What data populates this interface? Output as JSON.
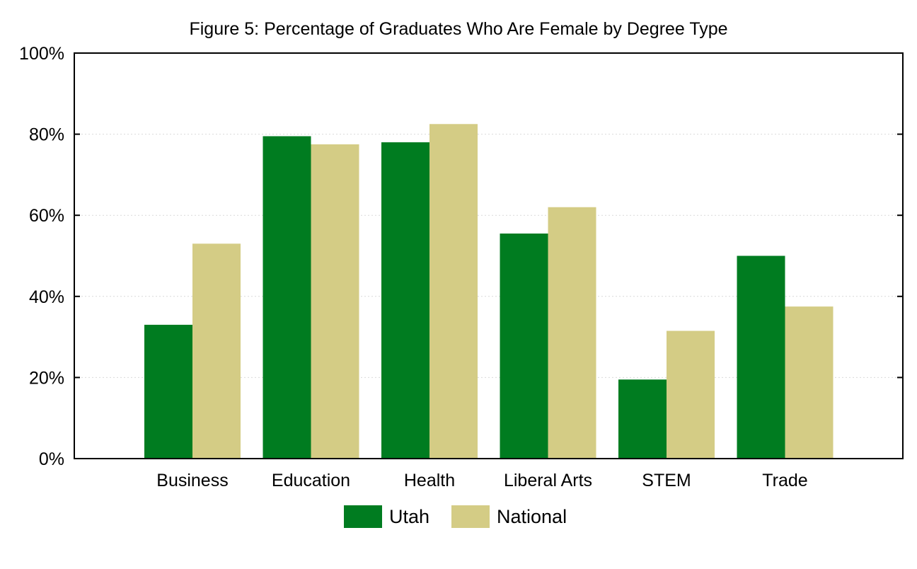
{
  "chart_data": {
    "type": "bar",
    "title": "Figure 5: Percentage of Graduates Who Are Female by Degree Type",
    "xlabel": "",
    "ylabel": "",
    "categories": [
      "Business",
      "Education",
      "Health",
      "Liberal Arts",
      "STEM",
      "Trade"
    ],
    "series": [
      {
        "name": "Utah",
        "color": "#007c20",
        "values": [
          33,
          79.5,
          78,
          55.5,
          19.5,
          50
        ]
      },
      {
        "name": "National",
        "color": "#d4cc85",
        "values": [
          53,
          77.5,
          82.5,
          62,
          31.5,
          37.5
        ]
      }
    ],
    "ylim": [
      0,
      100
    ],
    "yticks": [
      0,
      20,
      40,
      60,
      80,
      100
    ],
    "ytick_labels": [
      "0%",
      "20%",
      "40%",
      "60%",
      "80%",
      "100%"
    ],
    "grid": true,
    "legend": "bottom-center"
  }
}
